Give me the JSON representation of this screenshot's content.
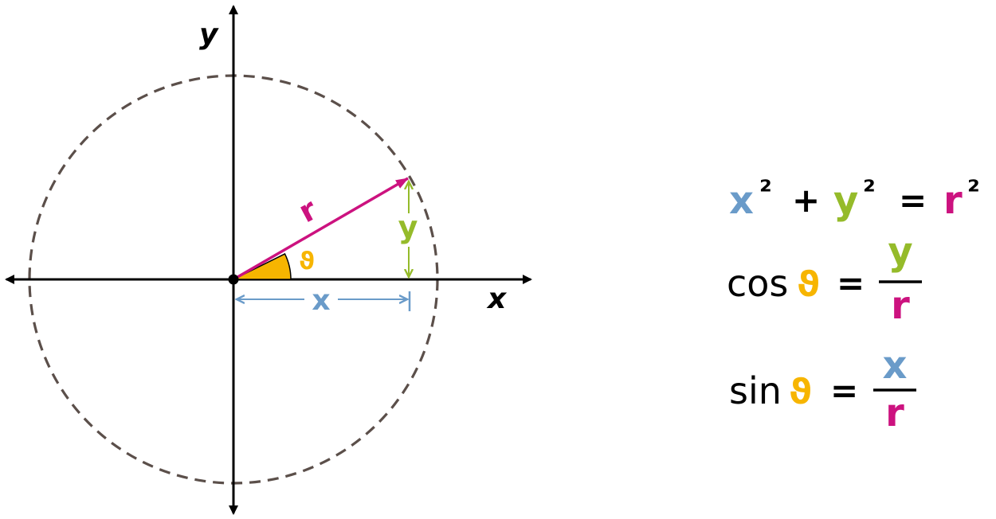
{
  "colors": {
    "x": "#6a9bc9",
    "y": "#95bb2a",
    "r": "#cc127f",
    "theta": "#f7b500",
    "circle": "#5b4f4a",
    "axis": "#000000"
  },
  "axes": {
    "x_label": "x",
    "y_label": "y"
  },
  "diagram_labels": {
    "r": "r",
    "y": "y",
    "x": "x",
    "theta": "ϑ"
  },
  "formulas": {
    "pythagorean": {
      "x": "x",
      "sq1": "²",
      "plus": "+",
      "y": "y",
      "sq2": "²",
      "eq": "=",
      "r": "r",
      "sq3": "²"
    },
    "cos": {
      "func": "cos",
      "theta": "ϑ",
      "eq": "=",
      "numerator": "y",
      "denominator": "r"
    },
    "sin": {
      "func": "sin",
      "theta": "ϑ",
      "eq": "=",
      "numerator": "x",
      "denominator": "r"
    }
  }
}
